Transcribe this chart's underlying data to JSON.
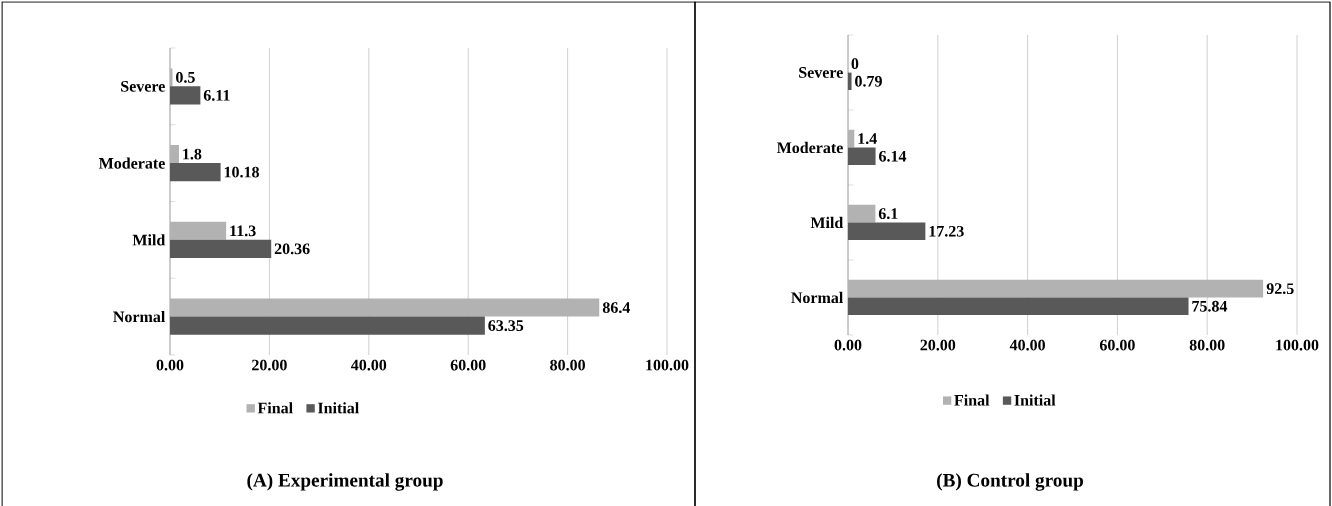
{
  "chart_data": [
    {
      "type": "bar",
      "orientation": "horizontal",
      "title": "(A) Experimental group",
      "categories": [
        "Severe",
        "Moderate",
        "Mild",
        "Normal"
      ],
      "series": [
        {
          "name": "Final",
          "color": "#b2b2b2",
          "values": [
            0.5,
            1.8,
            11.3,
            86.4
          ]
        },
        {
          "name": "Initial",
          "color": "#595959",
          "values": [
            6.11,
            10.18,
            20.36,
            63.35
          ]
        }
      ],
      "xlim": [
        0,
        100
      ],
      "xticks": [
        {
          "value": 0,
          "label": "0.00"
        },
        {
          "value": 20,
          "label": "20.00"
        },
        {
          "value": 40,
          "label": "40.00"
        },
        {
          "value": 60,
          "label": "60.00"
        },
        {
          "value": 80,
          "label": "80.00"
        },
        {
          "value": 100,
          "label": "100.00"
        }
      ],
      "grid": "x",
      "legend": "bottom",
      "data_labels": true
    },
    {
      "type": "bar",
      "orientation": "horizontal",
      "title": "(B) Control group",
      "categories": [
        "Severe",
        "Moderate",
        "Mild",
        "Normal"
      ],
      "series": [
        {
          "name": "Final",
          "color": "#b2b2b2",
          "values": [
            0,
            1.4,
            6.1,
            92.5
          ]
        },
        {
          "name": "Initial",
          "color": "#595959",
          "values": [
            0.79,
            6.14,
            17.23,
            75.84
          ]
        }
      ],
      "xlim": [
        0,
        100
      ],
      "xticks": [
        {
          "value": 0,
          "label": "0.00"
        },
        {
          "value": 20,
          "label": "20.00"
        },
        {
          "value": 40,
          "label": "40.00"
        },
        {
          "value": 60,
          "label": "60.00"
        },
        {
          "value": 80,
          "label": "80.00"
        },
        {
          "value": 100,
          "label": "100.00"
        }
      ],
      "grid": "x",
      "legend": "bottom",
      "data_labels": true
    }
  ]
}
